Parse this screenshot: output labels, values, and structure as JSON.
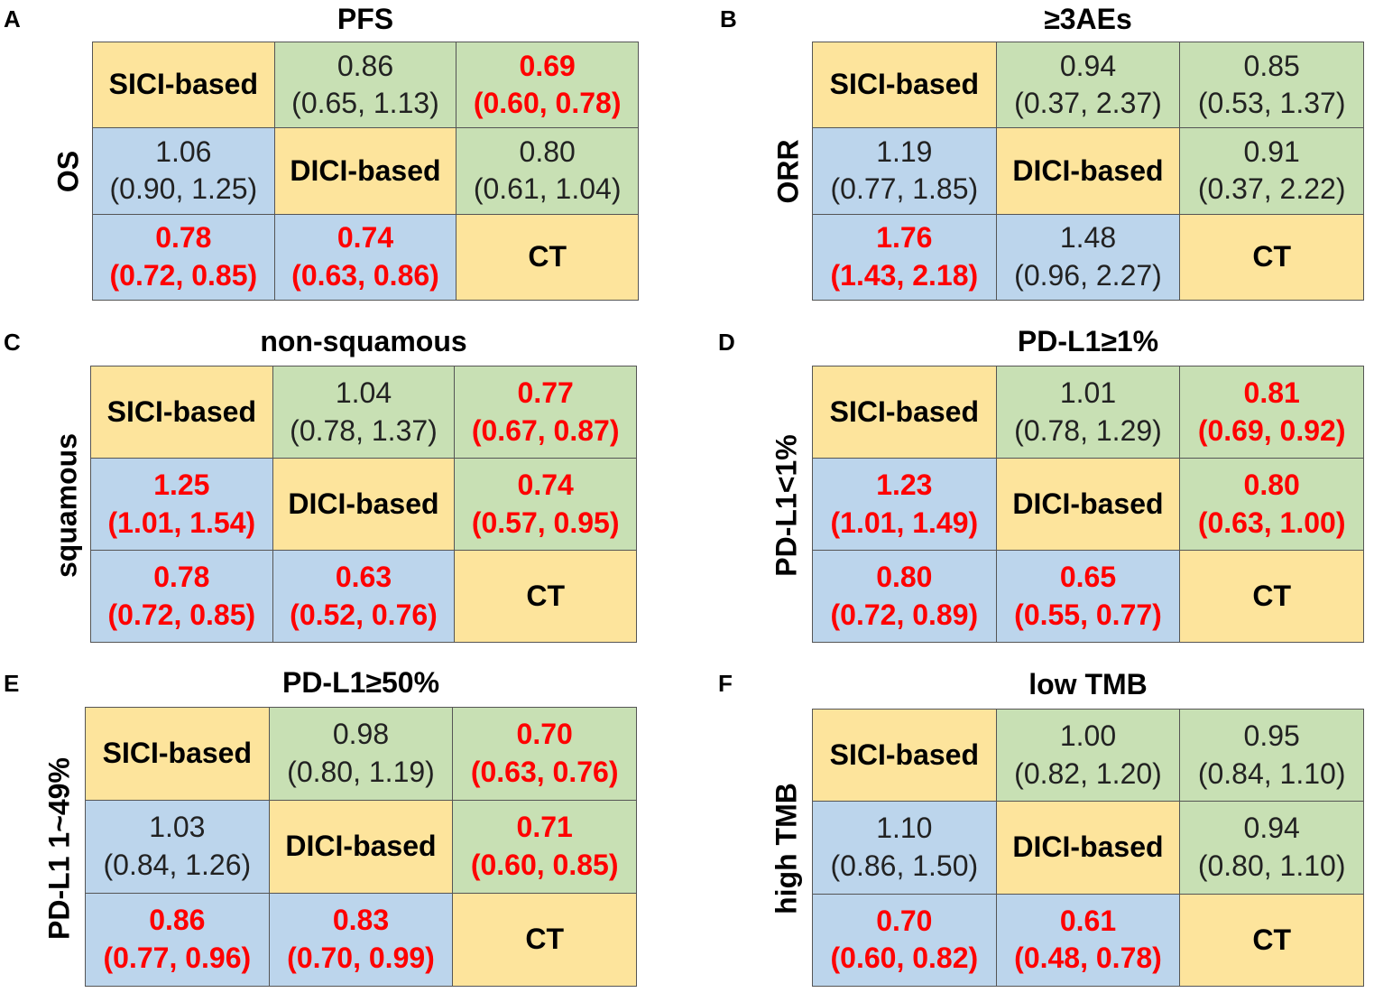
{
  "chart_data": [
    {
      "type": "table",
      "panel": "A",
      "title": "PFS",
      "side_label": "OS",
      "upper_metric": "PFS",
      "lower_metric": "OS",
      "treatments": [
        "SICI-based",
        "DICI-based",
        "CT"
      ],
      "matrix": [
        [
          {
            "label": "SICI-based"
          },
          {
            "value": "0.86",
            "ci": "(0.65, 1.13)",
            "sig": false
          },
          {
            "value": "0.69",
            "ci": "(0.60, 0.78)",
            "sig": true
          }
        ],
        [
          {
            "value": "1.06",
            "ci": "(0.90, 1.25)",
            "sig": false
          },
          {
            "label": "DICI-based"
          },
          {
            "value": "0.80",
            "ci": "(0.61, 1.04)",
            "sig": false
          }
        ],
        [
          {
            "value": "0.78",
            "ci": "(0.72, 0.85)",
            "sig": true
          },
          {
            "value": "0.74",
            "ci": "(0.63, 0.86)",
            "sig": true
          },
          {
            "label": "CT"
          }
        ]
      ]
    },
    {
      "type": "table",
      "panel": "B",
      "title": "≥3AEs",
      "side_label": "ORR",
      "upper_metric": "≥3AEs",
      "lower_metric": "ORR",
      "treatments": [
        "SICI-based",
        "DICI-based",
        "CT"
      ],
      "matrix": [
        [
          {
            "label": "SICI-based"
          },
          {
            "value": "0.94",
            "ci": "(0.37, 2.37)",
            "sig": false
          },
          {
            "value": "0.85",
            "ci": "(0.53, 1.37)",
            "sig": false
          }
        ],
        [
          {
            "value": "1.19",
            "ci": "(0.77, 1.85)",
            "sig": false
          },
          {
            "label": "DICI-based"
          },
          {
            "value": "0.91",
            "ci": "(0.37, 2.22)",
            "sig": false
          }
        ],
        [
          {
            "value": "1.76",
            "ci": "(1.43, 2.18)",
            "sig": true
          },
          {
            "value": "1.48",
            "ci": "(0.96, 2.27)",
            "sig": false
          },
          {
            "label": "CT"
          }
        ]
      ]
    },
    {
      "type": "table",
      "panel": "C",
      "title": "non-squamous",
      "side_label": "squamous",
      "upper_metric": "non-squamous",
      "lower_metric": "squamous",
      "treatments": [
        "SICI-based",
        "DICI-based",
        "CT"
      ],
      "matrix": [
        [
          {
            "label": "SICI-based"
          },
          {
            "value": "1.04",
            "ci": "(0.78, 1.37)",
            "sig": false
          },
          {
            "value": "0.77",
            "ci": "(0.67, 0.87)",
            "sig": true
          }
        ],
        [
          {
            "value": "1.25",
            "ci": "(1.01, 1.54)",
            "sig": true
          },
          {
            "label": "DICI-based"
          },
          {
            "value": "0.74",
            "ci": "(0.57, 0.95)",
            "sig": true
          }
        ],
        [
          {
            "value": "0.78",
            "ci": "(0.72, 0.85)",
            "sig": true
          },
          {
            "value": "0.63",
            "ci": "(0.52, 0.76)",
            "sig": true
          },
          {
            "label": "CT"
          }
        ]
      ]
    },
    {
      "type": "table",
      "panel": "D",
      "title": "PD-L1≥1%",
      "side_label": "PD-L1<1%",
      "upper_metric": "PD-L1≥1%",
      "lower_metric": "PD-L1<1%",
      "treatments": [
        "SICI-based",
        "DICI-based",
        "CT"
      ],
      "matrix": [
        [
          {
            "label": "SICI-based"
          },
          {
            "value": "1.01",
            "ci": "(0.78, 1.29)",
            "sig": false
          },
          {
            "value": "0.81",
            "ci": "(0.69, 0.92)",
            "sig": true
          }
        ],
        [
          {
            "value": "1.23",
            "ci": "(1.01, 1.49)",
            "sig": true
          },
          {
            "label": "DICI-based"
          },
          {
            "value": "0.80",
            "ci": "(0.63, 1.00)",
            "sig": true
          }
        ],
        [
          {
            "value": "0.80",
            "ci": "(0.72, 0.89)",
            "sig": true
          },
          {
            "value": "0.65",
            "ci": "(0.55, 0.77)",
            "sig": true
          },
          {
            "label": "CT"
          }
        ]
      ]
    },
    {
      "type": "table",
      "panel": "E",
      "title": "PD-L1≥50%",
      "side_label": "PD-L1 1~49%",
      "upper_metric": "PD-L1≥50%",
      "lower_metric": "PD-L1 1~49%",
      "treatments": [
        "SICI-based",
        "DICI-based",
        "CT"
      ],
      "matrix": [
        [
          {
            "label": "SICI-based"
          },
          {
            "value": "0.98",
            "ci": "(0.80, 1.19)",
            "sig": false
          },
          {
            "value": "0.70",
            "ci": "(0.63, 0.76)",
            "sig": true
          }
        ],
        [
          {
            "value": "1.03",
            "ci": "(0.84, 1.26)",
            "sig": false
          },
          {
            "label": "DICI-based"
          },
          {
            "value": "0.71",
            "ci": "(0.60, 0.85)",
            "sig": true
          }
        ],
        [
          {
            "value": "0.86",
            "ci": "(0.77, 0.96)",
            "sig": true
          },
          {
            "value": "0.83",
            "ci": "(0.70, 0.99)",
            "sig": true
          },
          {
            "label": "CT"
          }
        ]
      ]
    },
    {
      "type": "table",
      "panel": "F",
      "title": "low TMB",
      "side_label": "high TMB",
      "upper_metric": "low TMB",
      "lower_metric": "high TMB",
      "treatments": [
        "SICI-based",
        "DICI-based",
        "CT"
      ],
      "matrix": [
        [
          {
            "label": "SICI-based"
          },
          {
            "value": "1.00",
            "ci": "(0.82, 1.20)",
            "sig": false
          },
          {
            "value": "0.95",
            "ci": "(0.84, 1.10)",
            "sig": false
          }
        ],
        [
          {
            "value": "1.10",
            "ci": "(0.86, 1.50)",
            "sig": false
          },
          {
            "label": "DICI-based"
          },
          {
            "value": "0.94",
            "ci": "(0.80, 1.10)",
            "sig": false
          }
        ],
        [
          {
            "value": "0.70",
            "ci": "(0.60, 0.82)",
            "sig": true
          },
          {
            "value": "0.61",
            "ci": "(0.48, 0.78)",
            "sig": true
          },
          {
            "label": "CT"
          }
        ]
      ]
    }
  ],
  "colors": {
    "diagonal": "#fde49c",
    "upper": "#c8e0b4",
    "lower": "#bcd5ec",
    "significant_text": "#ff0000",
    "normal_text": "#222222"
  }
}
